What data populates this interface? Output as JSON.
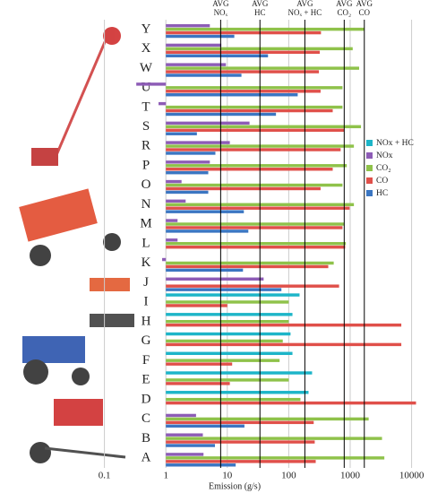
{
  "chart_data": {
    "type": "hbar",
    "x_label": "Emission (g/s)",
    "log_x": true,
    "grid": true,
    "xlim": [
      0.01,
      12000
    ],
    "xticks": [
      0.1,
      1,
      10,
      100,
      1000,
      10000
    ],
    "categories": [
      "Y",
      "X",
      "W",
      "U",
      "T",
      "S",
      "R",
      "P",
      "O",
      "N",
      "M",
      "L",
      "K",
      "J",
      "I",
      "H",
      "G",
      "F",
      "E",
      "D",
      "C",
      "B",
      "A"
    ],
    "series": [
      {
        "name": "NOx + HC",
        "color": "#1db5c8",
        "values": [
          null,
          null,
          null,
          null,
          null,
          null,
          null,
          null,
          null,
          null,
          null,
          null,
          null,
          null,
          150,
          115,
          107,
          115,
          240,
          210,
          null,
          null,
          null
        ]
      },
      {
        "name": "NOx",
        "color": "#8d5cb6",
        "values": [
          5.2,
          8,
          9.5,
          0.33,
          0.76,
          23,
          11,
          5.2,
          1.8,
          2.1,
          1.55,
          1.55,
          0.87,
          39,
          null,
          null,
          null,
          null,
          null,
          null,
          3.1,
          4,
          4.1
        ]
      },
      {
        "name": "CO₂",
        "color": "#8fc24a",
        "values": [
          1700,
          1100,
          1400,
          750,
          750,
          1500,
          1150,
          880,
          750,
          1150,
          800,
          850,
          540,
          null,
          100,
          100,
          80,
          71,
          100,
          155,
          2000,
          3300,
          3600
        ]
      },
      {
        "name": "CO",
        "color": "#e0504a",
        "values": [
          335,
          320,
          310,
          330,
          520,
          800,
          700,
          520,
          330,
          980,
          750,
          830,
          440,
          660,
          10,
          6800,
          6800,
          12,
          11,
          11800,
          255,
          265,
          275
        ]
      },
      {
        "name": "HC",
        "color": "#3b76c2",
        "values": [
          13,
          46,
          17,
          140,
          62,
          3.2,
          6.4,
          4.9,
          4.9,
          18.6,
          22,
          null,
          18,
          76,
          null,
          null,
          null,
          null,
          null,
          null,
          19,
          6.3,
          13.7
        ]
      }
    ],
    "avg_lines": [
      {
        "label": [
          "AVG",
          "NOₓ"
        ],
        "value": 7.8
      },
      {
        "label": [
          "AVG",
          "HC"
        ],
        "value": 34
      },
      {
        "label": [
          "AVG",
          "NOₓ + HC"
        ],
        "value": 183
      },
      {
        "label": [
          "AVG",
          "CO₂"
        ],
        "value": 800
      },
      {
        "label": [
          "AVG",
          "CO"
        ],
        "value": 1700
      }
    ]
  }
}
